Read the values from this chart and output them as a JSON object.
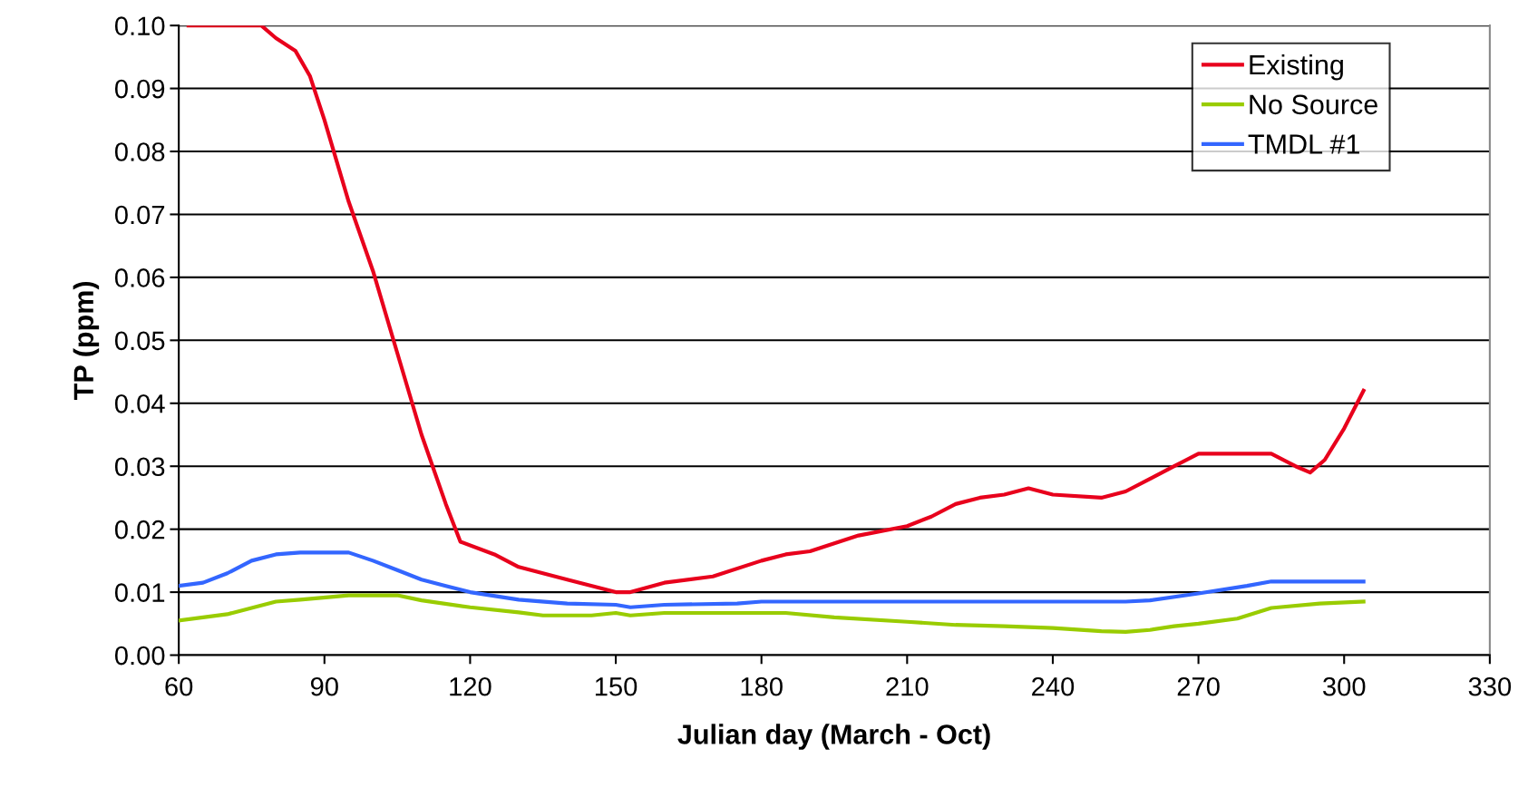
{
  "chart_data": {
    "type": "line",
    "xlabel": "Julian day (March - Oct)",
    "ylabel": "TP (ppm)",
    "xlim": [
      60,
      330
    ],
    "xticks": [
      60,
      90,
      120,
      150,
      180,
      210,
      240,
      270,
      300,
      330
    ],
    "ylim": [
      0,
      0.1
    ],
    "yticks": [
      {
        "value": 0,
        "label": "0.00"
      },
      {
        "value": 0.01,
        "label": "0.01"
      },
      {
        "value": 0.02,
        "label": "0.02"
      },
      {
        "value": 0.03,
        "label": "0.03"
      },
      {
        "value": 0.04,
        "label": "0.04"
      },
      {
        "value": 0.05,
        "label": "0.05"
      },
      {
        "value": 0.06,
        "label": "0.06"
      },
      {
        "value": 0.07,
        "label": "0.07"
      },
      {
        "value": 0.08,
        "label": "0.08"
      },
      {
        "value": 0.09,
        "label": "0.09"
      },
      {
        "value": 0.1,
        "label": "0.10"
      }
    ],
    "grid": "y",
    "legend": "top right",
    "marker": "none",
    "line_style": "solid",
    "series": [
      {
        "name": "Existing",
        "color": "#e8001c",
        "x": [
          62,
          70,
          77,
          80,
          84,
          87,
          90,
          95,
          100,
          105,
          110,
          115,
          118,
          125,
          130,
          140,
          150,
          153,
          160,
          170,
          180,
          185,
          190,
          200,
          210,
          215,
          220,
          225,
          230,
          235,
          240,
          250,
          255,
          260,
          265,
          270,
          280,
          285,
          290,
          293,
          296,
          300,
          304
        ],
        "values": [
          0.1,
          0.1,
          0.1,
          0.098,
          0.096,
          0.092,
          0.085,
          0.072,
          0.061,
          0.048,
          0.035,
          0.024,
          0.018,
          0.016,
          0.014,
          0.012,
          0.01,
          0.01,
          0.0115,
          0.0125,
          0.015,
          0.016,
          0.0165,
          0.019,
          0.0205,
          0.022,
          0.024,
          0.025,
          0.0255,
          0.0265,
          0.0255,
          0.025,
          0.026,
          0.028,
          0.03,
          0.032,
          0.032,
          0.032,
          0.03,
          0.029,
          0.031,
          0.036,
          0.042
        ]
      },
      {
        "name": "No Source",
        "color": "#99cc00",
        "x": [
          60,
          65,
          70,
          75,
          80,
          85,
          95,
          105,
          110,
          120,
          130,
          135,
          145,
          150,
          153,
          160,
          185,
          195,
          210,
          220,
          230,
          240,
          250,
          255,
          260,
          265,
          270,
          278,
          285,
          295,
          304
        ],
        "values": [
          0.0055,
          0.006,
          0.0065,
          0.0075,
          0.0085,
          0.0088,
          0.0095,
          0.0095,
          0.0087,
          0.0076,
          0.0068,
          0.0063,
          0.0063,
          0.0067,
          0.0063,
          0.0067,
          0.0067,
          0.006,
          0.0053,
          0.0048,
          0.0046,
          0.0043,
          0.0038,
          0.0037,
          0.004,
          0.0046,
          0.005,
          0.0058,
          0.0075,
          0.0082,
          0.0085
        ]
      },
      {
        "name": "TMDL #1",
        "color": "#3366ff",
        "x": [
          60,
          65,
          70,
          75,
          80,
          85,
          95,
          100,
          105,
          110,
          115,
          120,
          130,
          140,
          150,
          153,
          160,
          175,
          180,
          200,
          255,
          260,
          270,
          280,
          285,
          304
        ],
        "values": [
          0.011,
          0.0115,
          0.013,
          0.015,
          0.016,
          0.0163,
          0.0163,
          0.015,
          0.0135,
          0.012,
          0.011,
          0.01,
          0.0088,
          0.0082,
          0.008,
          0.0076,
          0.008,
          0.0082,
          0.0085,
          0.0085,
          0.0085,
          0.0087,
          0.0098,
          0.011,
          0.0117,
          0.0117
        ]
      }
    ]
  }
}
